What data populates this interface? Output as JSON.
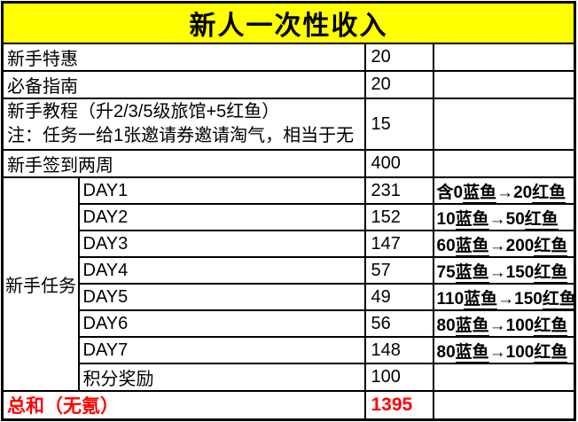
{
  "title": "新人一次性收入",
  "colors": {
    "title_bg": "#FFFF00",
    "title_text": "#000000",
    "border": "#000000",
    "total_text": "#FF0000",
    "body_text": "#000000"
  },
  "rows": [
    {
      "label": "新手特惠",
      "value": "20",
      "note": ""
    },
    {
      "label": "必备指南",
      "value": "20",
      "note": ""
    },
    {
      "label_line1": "新手教程（升2/3/5级旅馆+5红鱼）",
      "label_line2": "注：任务一给1张邀请券邀请淘气，相当于无",
      "value": "15",
      "note": ""
    },
    {
      "label": "新手签到两周",
      "value": "400",
      "note": ""
    }
  ],
  "task_group": {
    "label": "新手任务",
    "rows": [
      {
        "label": "DAY1",
        "value": "231",
        "note_parts": [
          {
            "t": "含0"
          },
          {
            "t": "蓝鱼",
            "u": true
          },
          {
            "t": "→20"
          },
          {
            "t": "红鱼",
            "u": true
          }
        ]
      },
      {
        "label": "DAY2",
        "value": "152",
        "note_parts": [
          {
            "t": "10"
          },
          {
            "t": "蓝鱼",
            "u": true
          },
          {
            "t": "→50"
          },
          {
            "t": "红鱼",
            "u": true
          }
        ]
      },
      {
        "label": "DAY3",
        "value": "147",
        "note_parts": [
          {
            "t": "60"
          },
          {
            "t": "蓝鱼",
            "u": true
          },
          {
            "t": "→200"
          },
          {
            "t": "红鱼",
            "u": true
          }
        ]
      },
      {
        "label": "DAY4",
        "value": "57",
        "note_parts": [
          {
            "t": "75"
          },
          {
            "t": "蓝鱼",
            "u": true
          },
          {
            "t": "→150"
          },
          {
            "t": "红鱼",
            "u": true
          }
        ]
      },
      {
        "label": "DAY5",
        "value": "49",
        "note_parts": [
          {
            "t": "110"
          },
          {
            "t": "蓝鱼",
            "u": true
          },
          {
            "t": "→150"
          },
          {
            "t": "红鱼",
            "u": true
          }
        ]
      },
      {
        "label": "DAY6",
        "value": "56",
        "note_parts": [
          {
            "t": "80"
          },
          {
            "t": "蓝鱼",
            "u": true
          },
          {
            "t": "→100"
          },
          {
            "t": "红鱼",
            "u": true
          }
        ]
      },
      {
        "label": "DAY7",
        "value": "148",
        "note_parts": [
          {
            "t": "80"
          },
          {
            "t": "蓝鱼",
            "u": true
          },
          {
            "t": "→100"
          },
          {
            "t": "红鱼",
            "u": true
          }
        ]
      },
      {
        "label": "积分奖励",
        "value": "100",
        "note": ""
      }
    ]
  },
  "total": {
    "label": "总和（无氪）",
    "value": "1395",
    "note": ""
  }
}
